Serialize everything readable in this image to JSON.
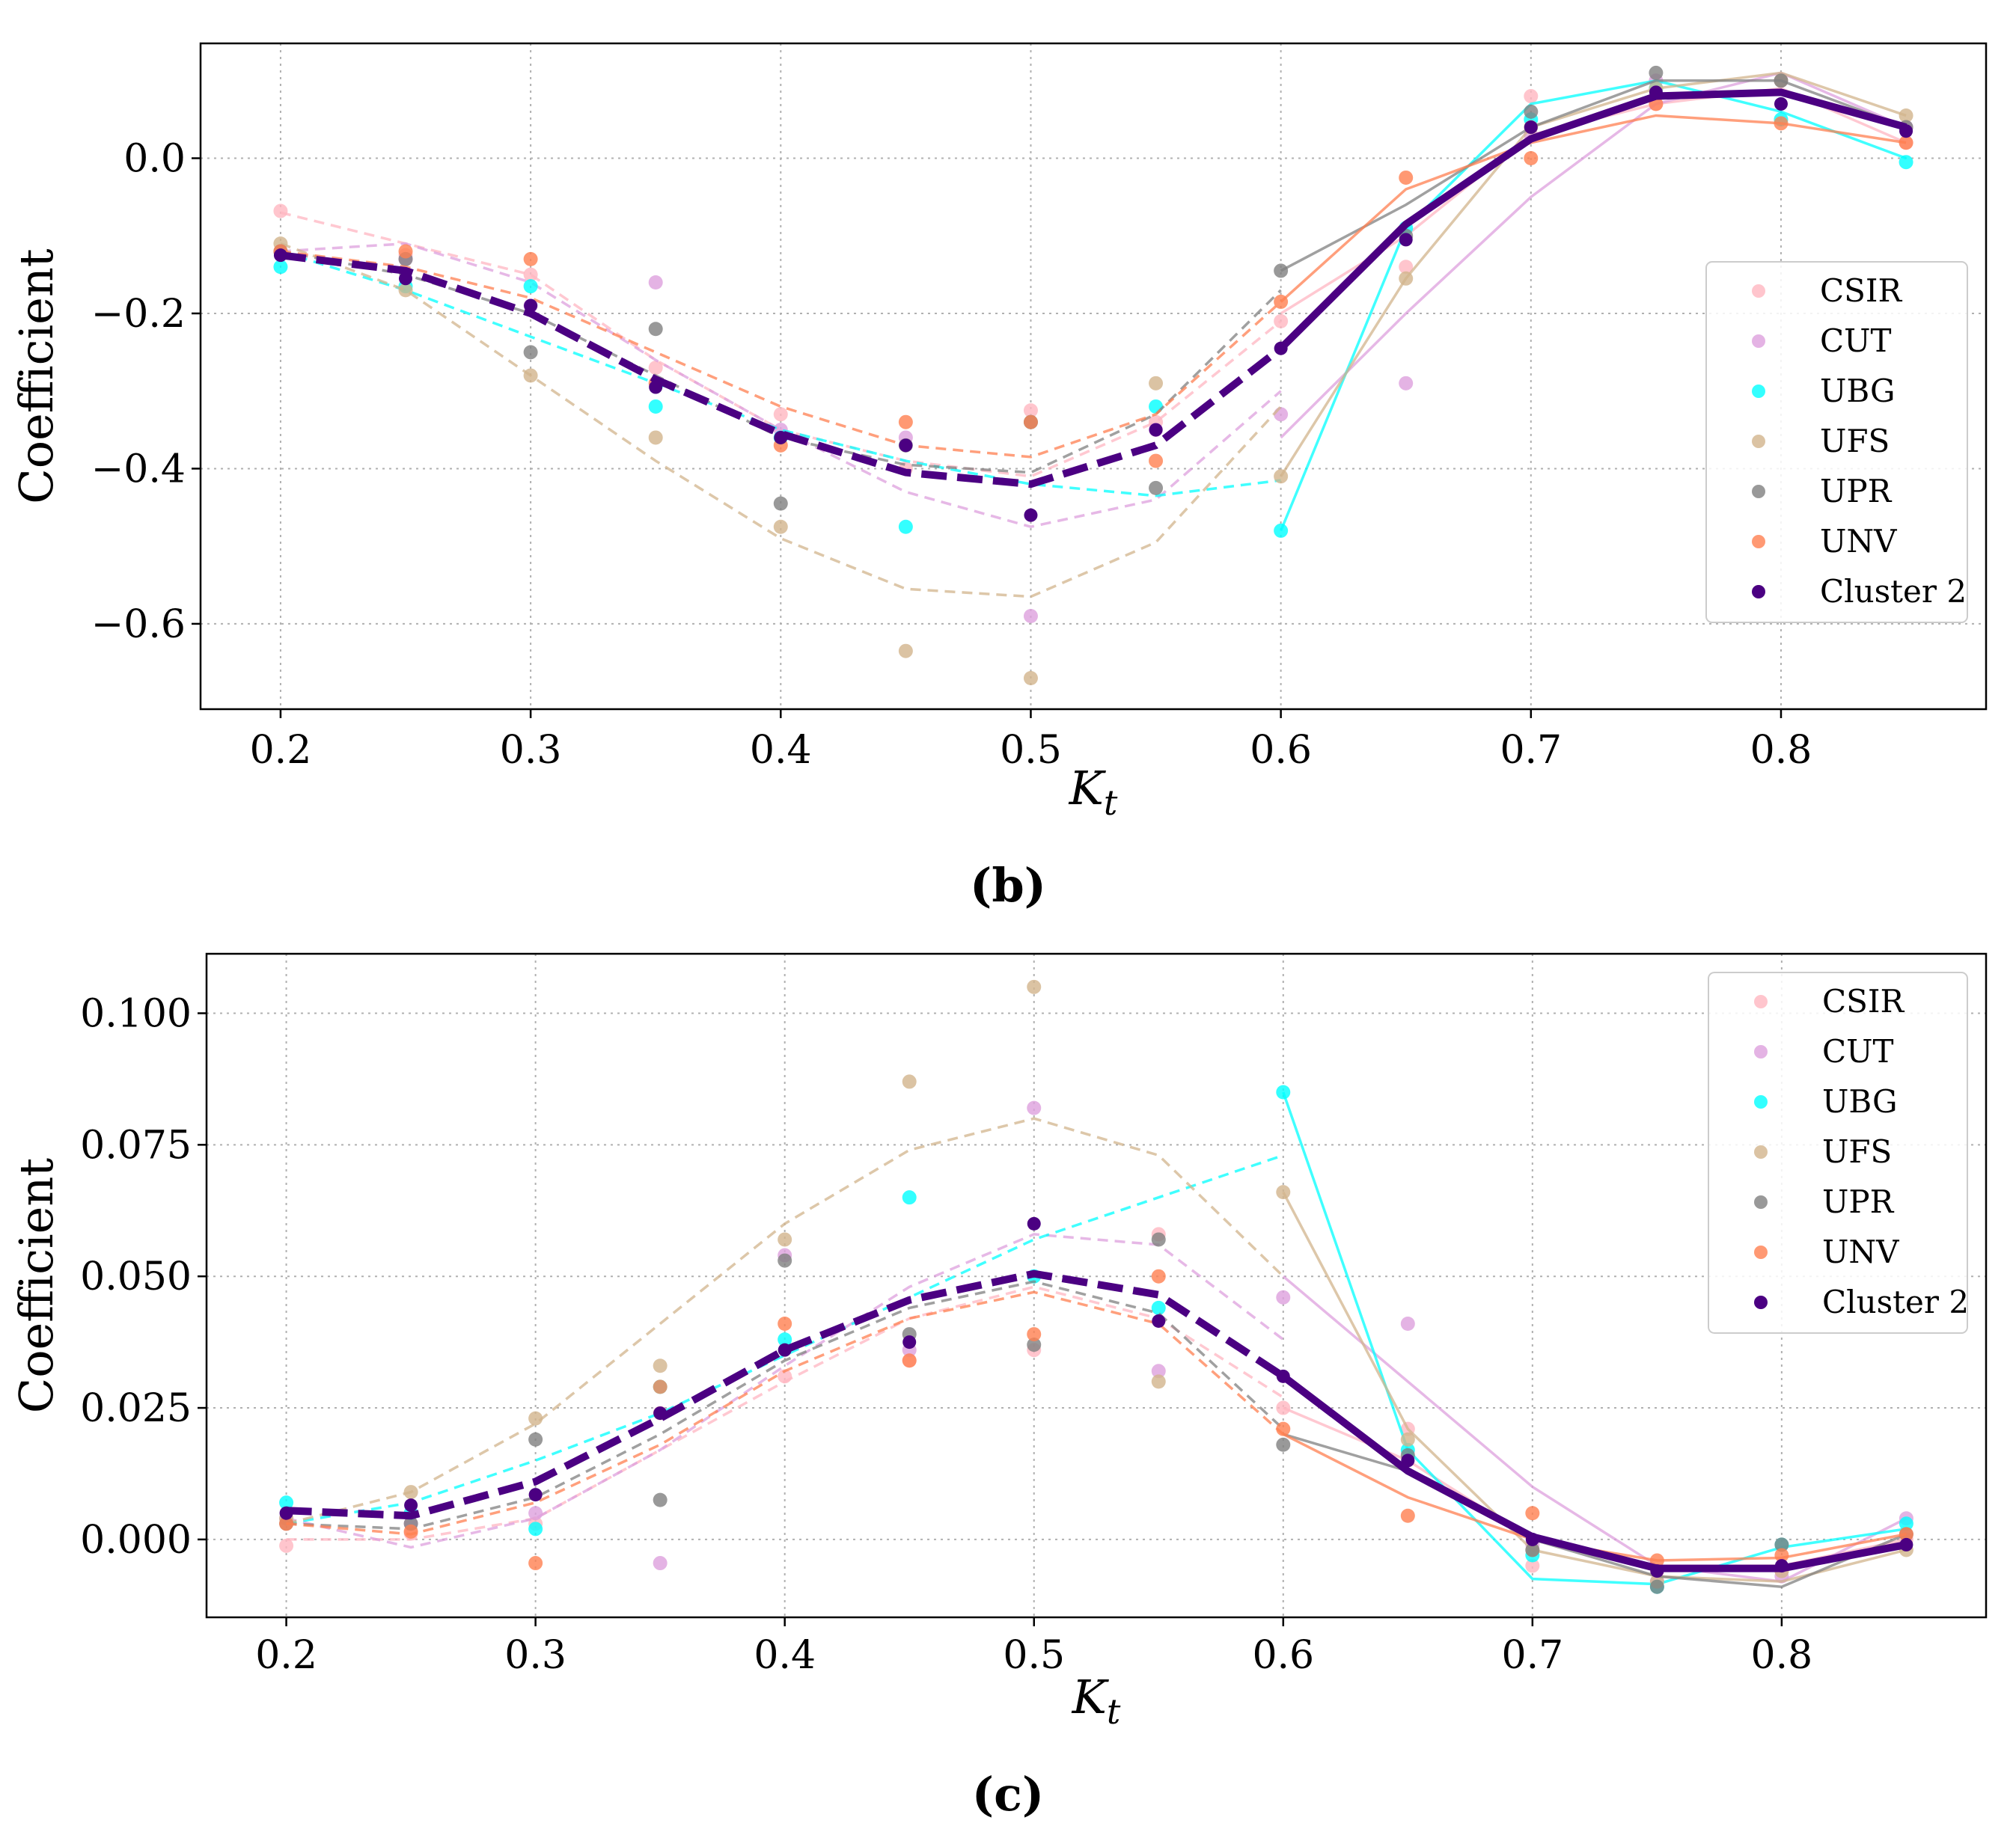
{
  "colors": {
    "CSIR": "#ffb6c1",
    "CUT": "#dda0dd",
    "UBG": "#00ffff",
    "UFS": "#d2b48c",
    "UPR": "#808080",
    "UNV": "#ff7f50",
    "Cluster 2": "#4b0082"
  },
  "chart_data": [
    {
      "type": "line",
      "panel": "b",
      "caption": "(b)",
      "xlabel": "K_t",
      "ylabel": "Coefficient",
      "xlim": [
        0.168,
        0.882
      ],
      "ylim": [
        -0.71,
        0.148
      ],
      "xticks": [
        0.2,
        0.3,
        0.4,
        0.5,
        0.6,
        0.7,
        0.8
      ],
      "xtick_labels": [
        "0.2",
        "0.3",
        "0.4",
        "0.5",
        "0.6",
        "0.7",
        "0.8"
      ],
      "yticks": [
        0.0,
        -0.2,
        -0.4,
        -0.6
      ],
      "ytick_labels": [
        "0.0",
        "−0.2",
        "−0.4",
        "−0.6"
      ],
      "grid": true,
      "legend": "right",
      "legend_entries": [
        "CSIR",
        "CUT",
        "UBG",
        "UFS",
        "UPR",
        "UNV",
        "Cluster 2"
      ],
      "break_after": 0.6,
      "x": [
        0.2,
        0.25,
        0.3,
        0.35,
        0.4,
        0.45,
        0.5,
        0.55,
        0.6,
        0.65,
        0.7,
        0.75,
        0.8,
        0.85
      ],
      "series": [
        {
          "name": "CSIR",
          "points": [
            -0.068,
            -0.125,
            -0.15,
            -0.27,
            -0.33,
            -0.4,
            -0.325,
            -0.34,
            -0.21,
            -0.14,
            0.08,
            0.07,
            0.1,
            0.02
          ],
          "fit_pre": [
            -0.07,
            -0.11,
            -0.15,
            -0.26,
            -0.35,
            -0.39,
            -0.41,
            -0.34,
            -0.21
          ],
          "fit_post": [
            -0.2,
            -0.1,
            0.03,
            0.07,
            0.09,
            0.02
          ]
        },
        {
          "name": "CUT",
          "points": [
            -0.12,
            -0.13,
            -0.19,
            -0.16,
            -0.35,
            -0.36,
            -0.59,
            -0.35,
            -0.33,
            -0.29,
            0.03,
            0.1,
            0.1,
            0.04
          ],
          "fit_pre": [
            -0.12,
            -0.11,
            -0.16,
            -0.26,
            -0.35,
            -0.43,
            -0.475,
            -0.44,
            -0.3
          ],
          "fit_post": [
            -0.36,
            -0.2,
            -0.05,
            0.07,
            0.11,
            0.04
          ]
        },
        {
          "name": "UBG",
          "points": [
            -0.14,
            -0.165,
            -0.165,
            -0.32,
            -0.36,
            -0.475,
            -0.34,
            -0.32,
            -0.48,
            -0.09,
            0.05,
            0.09,
            0.05,
            -0.005
          ],
          "fit_pre": [
            -0.12,
            -0.17,
            -0.23,
            -0.29,
            -0.35,
            -0.39,
            -0.42,
            -0.435,
            -0.415
          ],
          "fit_post": [
            -0.48,
            -0.09,
            0.07,
            0.1,
            0.06,
            0.0
          ]
        },
        {
          "name": "UFS",
          "points": [
            -0.11,
            -0.17,
            -0.28,
            -0.36,
            -0.475,
            -0.635,
            -0.67,
            -0.29,
            -0.41,
            -0.155,
            0.04,
            0.09,
            0.1,
            0.055
          ],
          "fit_pre": [
            -0.11,
            -0.17,
            -0.28,
            -0.39,
            -0.49,
            -0.555,
            -0.565,
            -0.495,
            -0.32
          ],
          "fit_post": [
            -0.41,
            -0.155,
            0.04,
            0.09,
            0.11,
            0.055
          ]
        },
        {
          "name": "UPR",
          "points": [
            -0.12,
            -0.13,
            -0.25,
            -0.22,
            -0.445,
            -0.37,
            -0.34,
            -0.425,
            -0.145,
            -0.1,
            0.06,
            0.11,
            0.1,
            0.04
          ],
          "fit_pre": [
            -0.12,
            -0.15,
            -0.2,
            -0.28,
            -0.36,
            -0.395,
            -0.405,
            -0.33,
            -0.17
          ],
          "fit_post": [
            -0.145,
            -0.06,
            0.04,
            0.1,
            0.1,
            0.04
          ]
        },
        {
          "name": "UNV",
          "points": [
            -0.12,
            -0.12,
            -0.13,
            -0.29,
            -0.37,
            -0.34,
            -0.34,
            -0.39,
            -0.185,
            -0.025,
            0.0,
            0.07,
            0.045,
            0.02
          ],
          "fit_pre": [
            -0.12,
            -0.14,
            -0.18,
            -0.25,
            -0.32,
            -0.37,
            -0.385,
            -0.33,
            -0.185
          ],
          "fit_post": [
            -0.185,
            -0.04,
            0.02,
            0.055,
            0.045,
            0.02
          ]
        },
        {
          "name": "Cluster 2",
          "points": [
            -0.125,
            -0.155,
            -0.19,
            -0.295,
            -0.36,
            -0.37,
            -0.46,
            -0.35,
            -0.245,
            -0.105,
            0.04,
            0.085,
            0.07,
            0.035
          ],
          "fit_pre": [
            -0.125,
            -0.145,
            -0.2,
            -0.285,
            -0.355,
            -0.405,
            -0.42,
            -0.37,
            -0.245
          ],
          "fit_post": [
            -0.245,
            -0.085,
            0.025,
            0.08,
            0.085,
            0.04
          ]
        }
      ]
    },
    {
      "type": "line",
      "panel": "c",
      "caption": "(c)",
      "xlabel": "K_t",
      "ylabel": "Coefficient",
      "xlim": [
        0.168,
        0.882
      ],
      "ylim": [
        -0.0148,
        0.1113
      ],
      "xticks": [
        0.2,
        0.3,
        0.4,
        0.5,
        0.6,
        0.7,
        0.8
      ],
      "xtick_labels": [
        "0.2",
        "0.3",
        "0.4",
        "0.5",
        "0.6",
        "0.7",
        "0.8"
      ],
      "yticks": [
        0.1,
        0.075,
        0.05,
        0.025,
        0.0
      ],
      "ytick_labels": [
        "0.100",
        "0.075",
        "0.050",
        "0.025",
        "0.000"
      ],
      "grid": true,
      "legend": "top-right",
      "legend_entries": [
        "CSIR",
        "CUT",
        "UBG",
        "UFS",
        "UPR",
        "UNV",
        "Cluster 2"
      ],
      "break_after": 0.6,
      "x": [
        0.2,
        0.25,
        0.3,
        0.35,
        0.4,
        0.45,
        0.5,
        0.55,
        0.6,
        0.65,
        0.7,
        0.75,
        0.8,
        0.85
      ],
      "series": [
        {
          "name": "CSIR",
          "points": [
            -0.0012,
            0.0012,
            0.003,
            0.024,
            0.031,
            0.034,
            0.036,
            0.058,
            0.025,
            0.021,
            -0.005,
            -0.006,
            -0.006,
            0.0
          ],
          "fit_pre": [
            0.0,
            0.0,
            0.004,
            0.017,
            0.03,
            0.042,
            0.048,
            0.042,
            0.027
          ],
          "fit_post": [
            0.025,
            0.015,
            0.0,
            -0.005,
            -0.005,
            0.0
          ]
        },
        {
          "name": "CUT",
          "points": [
            0.004,
            0.003,
            0.005,
            -0.0045,
            0.054,
            0.036,
            0.082,
            0.032,
            0.046,
            0.041,
            -0.001,
            -0.008,
            -0.007,
            0.004
          ],
          "fit_pre": [
            0.004,
            -0.0015,
            0.004,
            0.017,
            0.033,
            0.048,
            0.058,
            0.056,
            0.038
          ],
          "fit_post": [
            0.05,
            0.03,
            0.01,
            -0.005,
            -0.008,
            0.004
          ]
        },
        {
          "name": "UBG",
          "points": [
            0.007,
            0.005,
            0.002,
            0.029,
            0.038,
            0.065,
            0.05,
            0.044,
            0.085,
            0.017,
            -0.003,
            -0.009,
            -0.001,
            0.003
          ],
          "fit_pre": [
            0.003,
            0.007,
            0.015,
            0.024,
            0.035,
            0.046,
            0.057,
            0.065,
            0.073
          ],
          "fit_post": [
            0.085,
            0.017,
            -0.0075,
            -0.0085,
            -0.0015,
            0.002
          ]
        },
        {
          "name": "UFS",
          "points": [
            0.004,
            0.009,
            0.023,
            0.033,
            0.057,
            0.087,
            0.105,
            0.03,
            0.066,
            0.019,
            -0.002,
            -0.008,
            -0.006,
            -0.002
          ],
          "fit_pre": [
            0.003,
            0.009,
            0.022,
            0.041,
            0.06,
            0.074,
            0.08,
            0.073,
            0.05
          ],
          "fit_post": [
            0.066,
            0.021,
            -0.002,
            -0.007,
            -0.008,
            -0.002
          ]
        },
        {
          "name": "UPR",
          "points": [
            0.003,
            0.003,
            0.019,
            0.0075,
            0.053,
            0.039,
            0.037,
            0.057,
            0.018,
            0.016,
            -0.002,
            -0.009,
            -0.001,
            0.001
          ],
          "fit_pre": [
            0.003,
            0.002,
            0.008,
            0.02,
            0.034,
            0.044,
            0.049,
            0.043,
            0.021
          ],
          "fit_post": [
            0.02,
            0.013,
            0.0,
            -0.007,
            -0.009,
            0.001
          ]
        },
        {
          "name": "UNV",
          "points": [
            0.003,
            0.0015,
            -0.0045,
            0.029,
            0.041,
            0.034,
            0.039,
            0.05,
            0.021,
            0.0045,
            0.005,
            -0.004,
            -0.003,
            0.001
          ],
          "fit_pre": [
            0.003,
            0.001,
            0.007,
            0.018,
            0.032,
            0.042,
            0.047,
            0.041,
            0.02
          ],
          "fit_post": [
            0.02,
            0.008,
            0.0,
            -0.004,
            -0.0035,
            0.001
          ]
        },
        {
          "name": "Cluster 2",
          "points": [
            0.005,
            0.0065,
            0.0085,
            0.024,
            0.036,
            0.0375,
            0.06,
            0.0415,
            0.031,
            0.015,
            0.0,
            -0.006,
            -0.005,
            -0.001
          ],
          "fit_pre": [
            0.0055,
            0.0045,
            0.011,
            0.023,
            0.036,
            0.0455,
            0.0505,
            0.0465,
            0.031
          ],
          "fit_post": [
            0.031,
            0.013,
            0.0005,
            -0.0055,
            -0.0055,
            -0.001
          ]
        }
      ]
    }
  ]
}
